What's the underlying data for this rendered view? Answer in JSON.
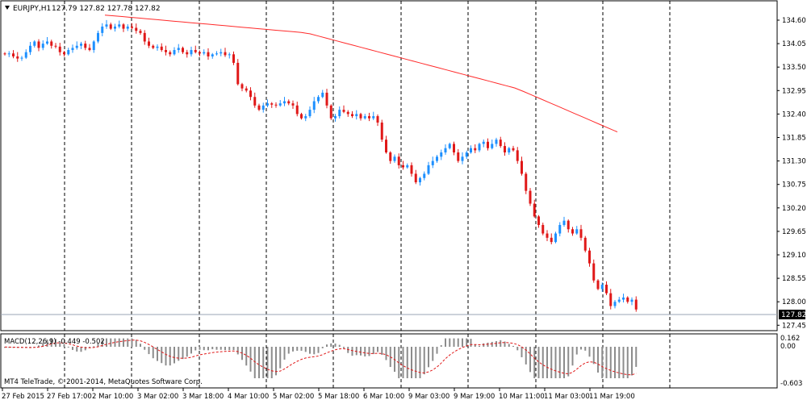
{
  "header": {
    "symbol_label": "EURJPY,H1",
    "ohlc": "127.79 127.82 127.78 127.82"
  },
  "price_axis": {
    "ticks": [
      "134.60",
      "134.05",
      "133.50",
      "132.95",
      "132.40",
      "131.85",
      "131.30",
      "130.75",
      "130.20",
      "129.65",
      "129.10",
      "128.55",
      "128.00",
      "127.45"
    ],
    "current_price": "127.82"
  },
  "macd": {
    "label": "MACD(12,26,9) -0.449 -0.502",
    "axis_top": "0.162",
    "axis_zero": "0.00",
    "axis_bottom": "-0.603"
  },
  "footer": {
    "copyright": "MT4 TeleTrade, © 2001-2014, MetaQuotes Software Corp."
  },
  "time_axis": {
    "labels": [
      "27 Feb 2015",
      "27 Feb 17:00",
      "2 Mar 10:00",
      "3 Mar 02:00",
      "3 Mar 18:00",
      "4 Mar 10:00",
      "5 Mar 02:00",
      "5 Mar 18:00",
      "6 Mar 10:00",
      "9 Mar 03:00",
      "9 Mar 19:00",
      "10 Mar 11:00",
      "11 Mar 03:00",
      "11 Mar 19:00"
    ]
  },
  "colors": {
    "bull": "#1e90ff",
    "bear": "#e01818",
    "ma": "#ff2a2a",
    "histogram": "#8c8c8c",
    "signal": "#e01818",
    "price_line": "#9aa6b4"
  },
  "chart_data": {
    "type": "candlestick",
    "series": [
      {
        "name": "EURJPY,H1"
      }
    ],
    "ma_y": [
      134.72,
      134.3,
      133.0,
      131.98
    ],
    "price_range": [
      127.3,
      134.85
    ],
    "closes": [
      133.8,
      133.82,
      133.75,
      133.7,
      133.72,
      133.85,
      134.0,
      134.1,
      133.95,
      134.05,
      134.1,
      134.0,
      133.98,
      133.85,
      133.8,
      133.9,
      133.95,
      134.0,
      134.05,
      133.95,
      133.9,
      134.1,
      134.3,
      134.45,
      134.5,
      134.4,
      134.45,
      134.5,
      134.4,
      134.45,
      134.42,
      134.35,
      134.3,
      134.1,
      134.0,
      133.95,
      133.98,
      133.9,
      133.85,
      133.8,
      133.9,
      133.95,
      133.85,
      133.8,
      133.9,
      133.85,
      133.82,
      133.85,
      133.75,
      133.8,
      133.82,
      133.85,
      133.78,
      133.8,
      133.6,
      133.1,
      133.0,
      132.95,
      132.8,
      132.6,
      132.5,
      132.6,
      132.65,
      132.62,
      132.6,
      132.65,
      132.7,
      132.65,
      132.6,
      132.4,
      132.3,
      132.35,
      132.5,
      132.7,
      132.8,
      132.9,
      132.6,
      132.3,
      132.35,
      132.5,
      132.45,
      132.4,
      132.35,
      132.4,
      132.3,
      132.35,
      132.3,
      132.35,
      132.2,
      131.8,
      131.5,
      131.3,
      131.4,
      131.2,
      131.15,
      131.2,
      131.0,
      130.8,
      130.9,
      131.0,
      131.2,
      131.3,
      131.4,
      131.5,
      131.6,
      131.7,
      131.5,
      131.3,
      131.4,
      131.5,
      131.6,
      131.55,
      131.7,
      131.75,
      131.6,
      131.7,
      131.8,
      131.65,
      131.5,
      131.6,
      131.55,
      131.3,
      131.0,
      130.6,
      130.3,
      130.0,
      129.8,
      129.6,
      129.5,
      129.4,
      129.6,
      129.8,
      129.9,
      129.7,
      129.6,
      129.7,
      129.5,
      129.2,
      128.9,
      128.5,
      128.3,
      128.4,
      128.2,
      127.9,
      128.0,
      128.05,
      128.1,
      128.0,
      128.05,
      127.82
    ]
  }
}
